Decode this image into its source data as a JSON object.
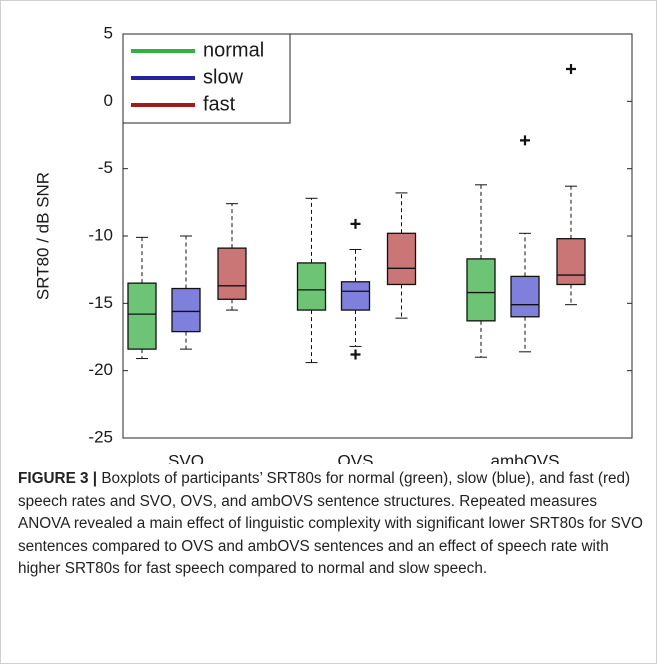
{
  "chart_data": {
    "type": "box",
    "ylabel": "SRT80 / dB SNR",
    "categories": [
      "SVO",
      "OVS",
      "ambOVS"
    ],
    "ylim": [
      -25,
      5
    ],
    "yticks": [
      -25,
      -20,
      -15,
      -10,
      -5,
      0,
      5
    ],
    "legend": "upper left",
    "series": [
      {
        "name": "normal",
        "color": "#33b043",
        "fill": "#6cc474",
        "min": [
          -19.1,
          -19.4,
          -19.0
        ],
        "q1": [
          -18.4,
          -15.5,
          -16.3
        ],
        "median": [
          -15.8,
          -14.0,
          -14.2
        ],
        "q3": [
          -13.5,
          -12.0,
          -11.7
        ],
        "max": [
          -10.1,
          -7.2,
          -6.2
        ],
        "outliers": [
          [],
          [],
          []
        ]
      },
      {
        "name": "slow",
        "color": "#23239e",
        "fill": "#7f80db",
        "min": [
          -18.4,
          -18.2,
          -18.6
        ],
        "q1": [
          -17.1,
          -15.5,
          -16.0
        ],
        "median": [
          -15.6,
          -14.1,
          -15.1
        ],
        "q3": [
          -13.9,
          -13.4,
          -13.0
        ],
        "max": [
          -10.0,
          -11.0,
          -9.8
        ],
        "outliers": [
          [],
          [
            -9.1,
            -18.8
          ],
          [
            -2.9
          ]
        ]
      },
      {
        "name": "fast",
        "color": "#a01b1b",
        "fill": "#cb7676",
        "min": [
          -15.5,
          -16.1,
          -15.1
        ],
        "q1": [
          -14.7,
          -13.6,
          -13.6
        ],
        "median": [
          -13.7,
          -12.4,
          -12.9
        ],
        "q3": [
          -10.9,
          -9.8,
          -10.2
        ],
        "max": [
          -7.6,
          -6.8,
          -6.3
        ],
        "outliers": [
          [],
          [],
          [
            2.4
          ]
        ]
      }
    ]
  },
  "caption": {
    "label": "FIGURE 3 |",
    "text": "Boxplots of participants’ SRT80s for normal (green), slow (blue), and fast (red) speech rates and SVO, OVS, and ambOVS sentence structures. Repeated measures ANOVA revealed a main effect of linguistic complexity with significant lower SRT80s for SVO sentences compared to OVS and ambOVS sentences and an effect of speech rate with higher SRT80s for fast speech compared to normal and slow speech."
  }
}
